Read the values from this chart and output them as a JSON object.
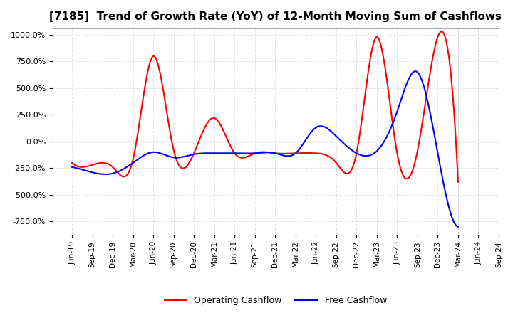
{
  "title": "[7185]  Trend of Growth Rate (YoY) of 12-Month Moving Sum of Cashflows",
  "title_fontsize": 11,
  "ylim": [
    -875,
    1062.5
  ],
  "yticks": [
    -750,
    -500,
    -250,
    0,
    250,
    500,
    750,
    1000
  ],
  "legend_labels": [
    "Operating Cashflow",
    "Free Cashflow"
  ],
  "legend_colors": [
    "#ff0000",
    "#0000ff"
  ],
  "x_labels": [
    "Jun-19",
    "Sep-19",
    "Dec-19",
    "Mar-20",
    "Jun-20",
    "Sep-20",
    "Dec-20",
    "Mar-21",
    "Jun-21",
    "Sep-21",
    "Dec-21",
    "Mar-22",
    "Jun-22",
    "Sep-22",
    "Dec-22",
    "Mar-23",
    "Jun-23",
    "Sep-23",
    "Dec-23",
    "Mar-24",
    "Jun-24",
    "Sep-24"
  ],
  "operating_cashflow": [
    -200,
    -220,
    -240,
    -170,
    800,
    -80,
    -110,
    220,
    -110,
    -110,
    -110,
    -110,
    -110,
    -200,
    -110,
    980,
    -110,
    -90,
    980,
    -380,
    null,
    null
  ],
  "free_cashflow": [
    -240,
    -290,
    -300,
    -200,
    -100,
    -150,
    -120,
    -110,
    -110,
    -110,
    -110,
    -110,
    130,
    50,
    -110,
    -90,
    280,
    650,
    -110,
    -800,
    null,
    null
  ],
  "background_color": "#ffffff",
  "grid_color": "#bbbbbb",
  "grid_style": ":"
}
